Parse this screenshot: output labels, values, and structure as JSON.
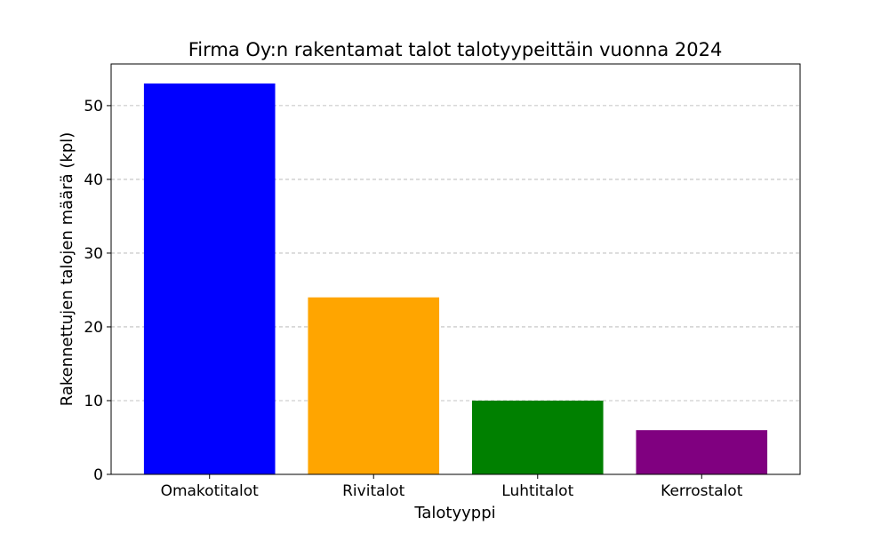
{
  "chart_data": {
    "type": "bar",
    "title": "Firma Oy:n rakentamat talot talotyypeittäin vuonna 2024",
    "xlabel": "Talotyyppi",
    "ylabel": "Rakennettujen talojen määrä (kpl)",
    "categories": [
      "Omakotitalot",
      "Rivitalot",
      "Luhtitalot",
      "Kerrostalot"
    ],
    "values": [
      53,
      24,
      10,
      6
    ],
    "colors": [
      "#0000ff",
      "#ffa500",
      "#008000",
      "#800080"
    ],
    "ylim": [
      0,
      55.65
    ],
    "yticks": [
      0,
      10,
      20,
      30,
      40,
      50
    ],
    "grid": "y-dashed",
    "legend": "none"
  }
}
